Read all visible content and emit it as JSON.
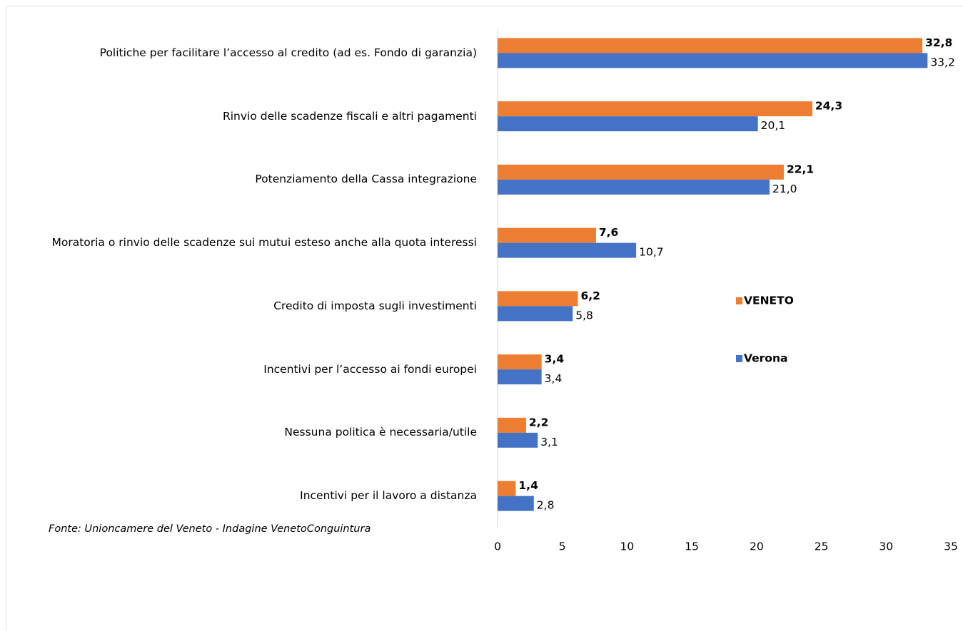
{
  "chart_data": {
    "type": "bar",
    "orientation": "horizontal",
    "categories": [
      "Politiche per facilitare l’accesso al credito (ad es. Fondo di garanzia)",
      "Rinvio delle scadenze fiscali e altri pagamenti",
      "Potenziamento della Cassa integrazione",
      "Moratoria o rinvio delle scadenze sui mutui esteso anche alla quota interessi",
      "Credito di imposta sugli investimenti",
      "Incentivi per l’accesso ai fondi europei",
      "Nessuna politica è necessaria/utile",
      "Incentivi per il lavoro a distanza"
    ],
    "series": [
      {
        "name": "VENETO",
        "color": "#ed7d31",
        "values": [
          32.8,
          24.3,
          22.1,
          7.6,
          6.2,
          3.4,
          2.2,
          1.4
        ],
        "value_labels": [
          "32,8",
          "24,3",
          "22,1",
          "7,6",
          "6,2",
          "3,4",
          "2,2",
          "1,4"
        ]
      },
      {
        "name": "Verona",
        "color": "#4472c4",
        "values": [
          33.2,
          20.1,
          21.0,
          10.7,
          5.8,
          3.4,
          3.1,
          2.8
        ],
        "value_labels": [
          "33,2",
          "20,1",
          "21,0",
          "10,7",
          "5,8",
          "3,4",
          "3,1",
          "2,8"
        ]
      }
    ],
    "xlim": [
      0,
      35
    ],
    "xticks": [
      0,
      5,
      10,
      15,
      20,
      25,
      30,
      35
    ],
    "source": "Fonte: Unioncamere del Veneto - Indagine VenetoConguintura"
  }
}
